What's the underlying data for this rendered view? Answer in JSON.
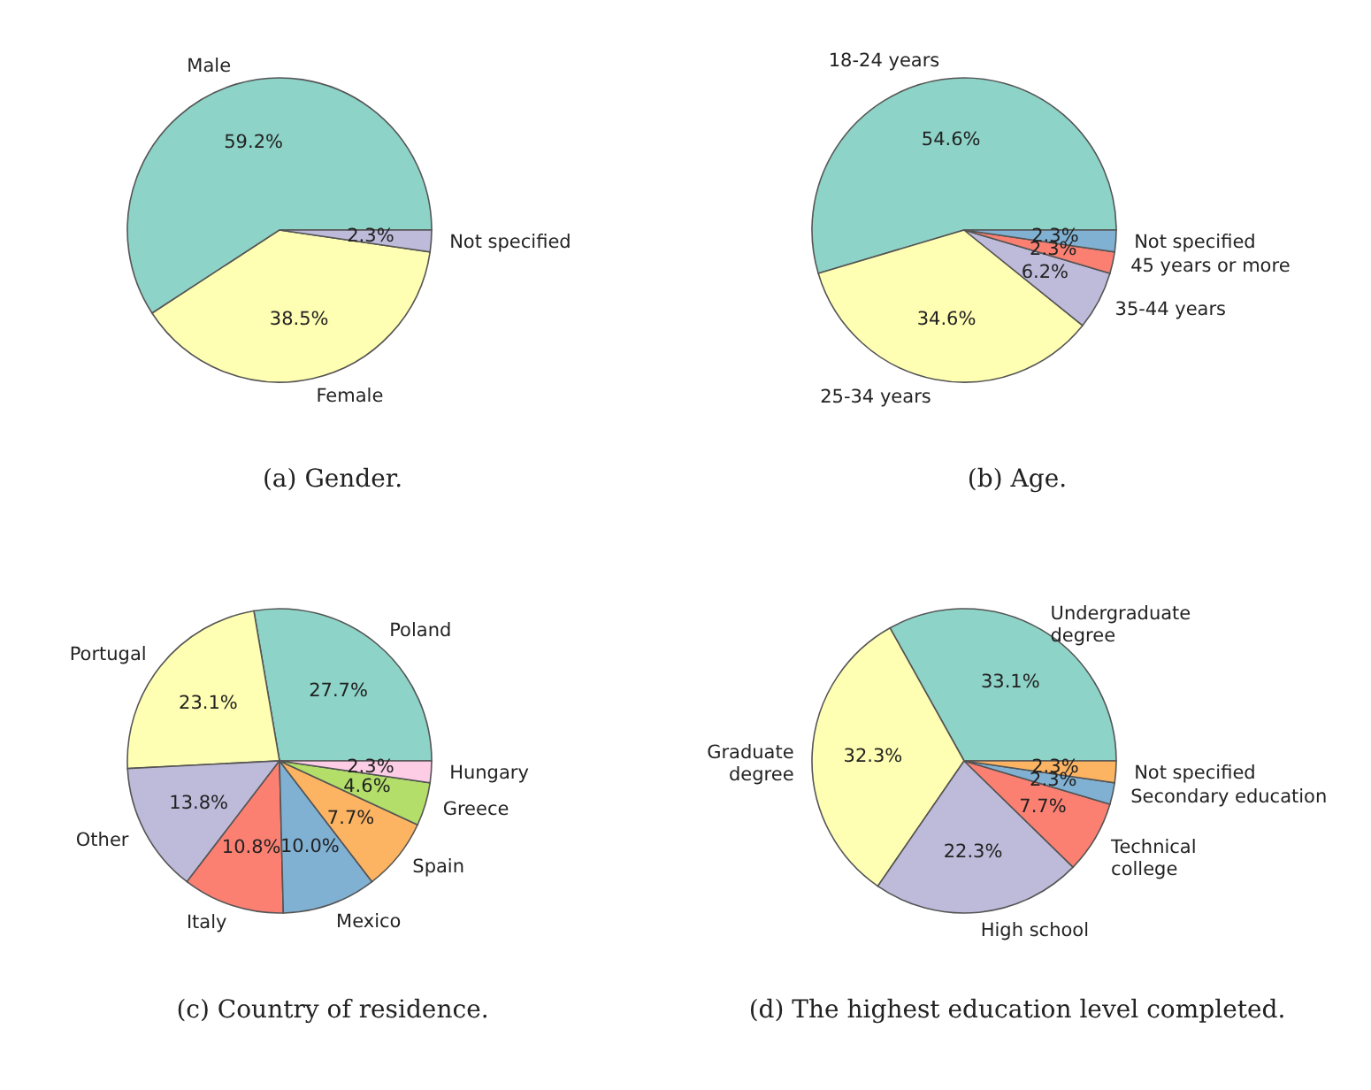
{
  "chart_data": [
    {
      "type": "pie",
      "title": "(a) Gender.",
      "categories": [
        "Male",
        "Female",
        "Not specified"
      ],
      "values": [
        59.2,
        38.5,
        2.3
      ],
      "value_labels": [
        "59.2%",
        "38.5%",
        "2.3%"
      ],
      "colors": [
        "#8dd3c7",
        "#ffffb3",
        "#bebada"
      ]
    },
    {
      "type": "pie",
      "title": "(b) Age.",
      "categories": [
        "18-24 years",
        "25-34 years",
        "35-44 years",
        "45 years or more",
        "Not specified"
      ],
      "values": [
        54.6,
        34.6,
        6.2,
        2.3,
        2.3
      ],
      "value_labels": [
        "54.6%",
        "34.6%",
        "6.2%",
        "2.3%",
        "2.3%"
      ],
      "colors": [
        "#8dd3c7",
        "#ffffb3",
        "#bebada",
        "#fb8072",
        "#80b1d3"
      ]
    },
    {
      "type": "pie",
      "title": "(c) Country of residence.",
      "categories": [
        "Poland",
        "Portugal",
        "Other",
        "Italy",
        "Mexico",
        "Spain",
        "Greece",
        "Hungary"
      ],
      "values": [
        27.7,
        23.1,
        13.8,
        10.8,
        10.0,
        7.7,
        4.6,
        2.3
      ],
      "value_labels": [
        "27.7%",
        "23.1%",
        "13.8%",
        "10.8%",
        "10.0%",
        "7.7%",
        "4.6%",
        "2.3%"
      ],
      "colors": [
        "#8dd3c7",
        "#ffffb3",
        "#bebada",
        "#fb8072",
        "#80b1d3",
        "#fdb462",
        "#b3de69",
        "#fccde5"
      ]
    },
    {
      "type": "pie",
      "title": "(d) The highest education level completed.",
      "categories": [
        "Undergraduate\ndegree",
        "Graduate\ndegree",
        "High school",
        "Technical\ncollege",
        "Secondary education",
        "Not specified"
      ],
      "values": [
        33.1,
        32.3,
        22.3,
        7.7,
        2.3,
        2.3
      ],
      "value_labels": [
        "33.1%",
        "32.3%",
        "22.3%",
        "7.7%",
        "2.3%",
        "2.3%"
      ],
      "colors": [
        "#8dd3c7",
        "#ffffb3",
        "#bebada",
        "#fb8072",
        "#80b1d3",
        "#fdb462"
      ]
    }
  ]
}
